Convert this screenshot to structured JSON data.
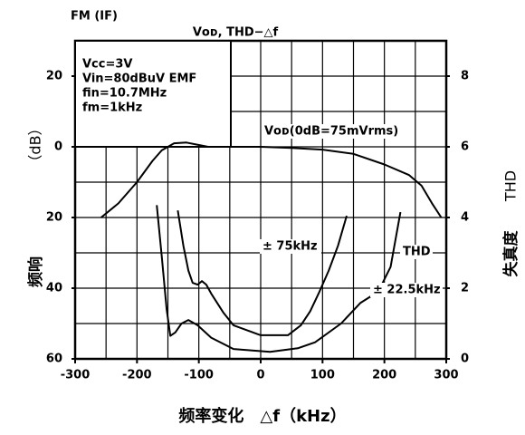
{
  "chart_data": {
    "type": "line",
    "header": "FM (IF)",
    "title": "Vᴏᴅ, THD−△f",
    "conditions": [
      "Vcc=3V",
      "Vin=80dBuV EMF",
      "fin=10.7MHz",
      "fm=1kHz"
    ],
    "y_label": [
      "频响",
      "（dB）"
    ],
    "y2_label": [
      "失真度",
      "THD"
    ],
    "x_label": "频率变化　△f（kHz）",
    "thd_label": "THD",
    "xlim": [
      -300,
      300
    ],
    "xticks": [
      -300,
      -200,
      -100,
      0,
      100,
      200,
      300
    ],
    "xgrid": [
      -300,
      -250,
      -200,
      -150,
      -100,
      -50,
      0,
      50,
      100,
      150,
      200,
      250,
      300
    ],
    "ylim": [
      -60,
      30
    ],
    "yticks": [
      20,
      0,
      {
        "value": -20,
        "label": "20"
      },
      {
        "value": -40,
        "label": "40"
      },
      {
        "value": -60,
        "label": "60"
      }
    ],
    "ygrid": [
      -60,
      -50,
      -40,
      -30,
      -20,
      -10,
      0,
      10,
      20,
      30
    ],
    "y2lim": [
      0,
      9
    ],
    "y2ticks": [
      0,
      2,
      4,
      6,
      8
    ],
    "series": [
      {
        "name": "Vᴏᴅ(0dB=75mVrms)",
        "color": "#000000",
        "x": [
          -258,
          -230,
          -200,
          -175,
          -160,
          -140,
          -120,
          -100,
          -85,
          -50,
          0,
          50,
          100,
          150,
          200,
          240,
          260,
          277,
          292
        ],
        "values": [
          -20,
          -16,
          -10,
          -4,
          -1,
          1,
          1.2,
          0.5,
          0,
          0,
          0,
          -0.3,
          -0.8,
          -2,
          -5,
          -8,
          -11,
          -16,
          -20
        ]
      },
      {
        "name": "± 75kHz",
        "color": "#000000",
        "axis": "y2",
        "x": [
          -134,
          -125,
          -117,
          -110,
          -102,
          -95,
          -88,
          -80,
          -60,
          -44,
          0,
          44,
          65,
          80,
          95,
          110,
          125,
          139
        ],
        "values": [
          4.2,
          3.2,
          2.5,
          2.15,
          2.1,
          2.2,
          2.1,
          1.85,
          1.3,
          0.95,
          0.67,
          0.67,
          0.95,
          1.35,
          1.9,
          2.5,
          3.2,
          4.05
        ]
      },
      {
        "name": "± 22.5kHz",
        "color": "#000000",
        "axis": "y2",
        "x": [
          -168,
          -160,
          -152,
          -146,
          -138,
          -128,
          -117,
          -102,
          -80,
          -44,
          15,
          60,
          88,
          130,
          161,
          190,
          210,
          226
        ],
        "values": [
          4.35,
          2.9,
          1.4,
          0.65,
          0.75,
          1.0,
          1.1,
          0.95,
          0.6,
          0.28,
          0.2,
          0.3,
          0.47,
          1.0,
          1.58,
          1.9,
          2.6,
          4.15
        ]
      }
    ]
  }
}
